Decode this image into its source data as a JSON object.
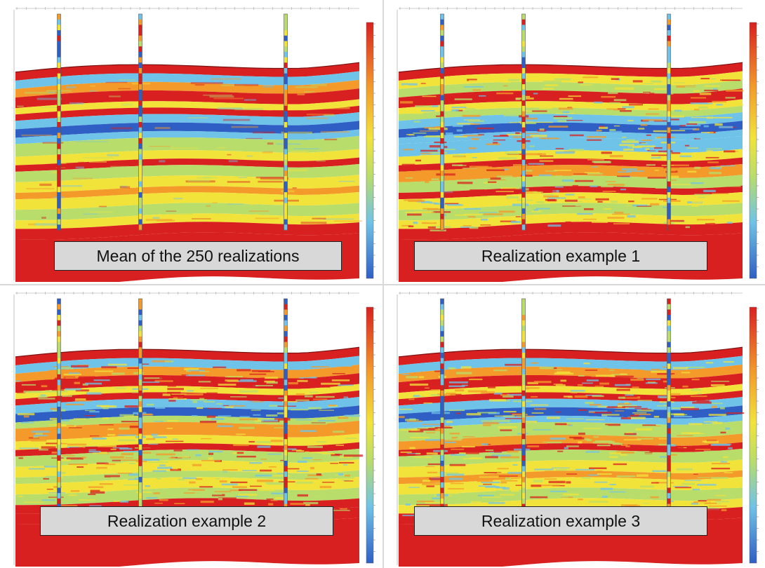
{
  "panels": [
    {
      "caption": "Mean of the 250 realizations",
      "variant": "mean",
      "seed": 3
    },
    {
      "caption": "Realization example 1",
      "variant": "realization",
      "seed": 11
    },
    {
      "caption": "Realization example 2",
      "variant": "realization",
      "seed": 23
    },
    {
      "caption": "Realization example 3",
      "variant": "realization",
      "seed": 37
    }
  ],
  "colors": {
    "low": "#2f5fc4",
    "cyan": "#6fc3e8",
    "green": "#b9dd6a",
    "yellow": "#f2e33a",
    "orange": "#f39a2a",
    "high": "#d92020",
    "background": "#ffffff"
  },
  "wells": {
    "count": 3
  },
  "colorbar": {
    "range": "low-to-high"
  }
}
